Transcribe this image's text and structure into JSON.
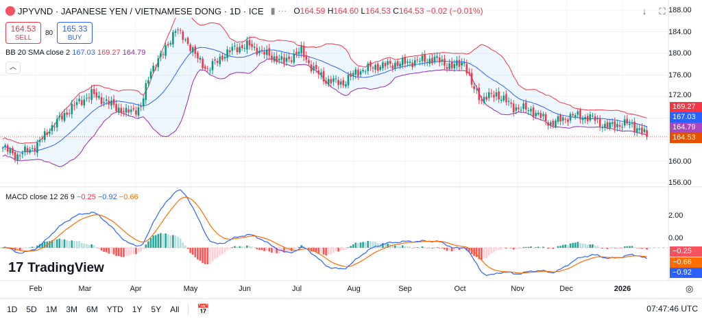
{
  "header": {
    "symbol": "JPYVND · JAPANESE YEN / VIETNAMESE DONG · 1D · ICE",
    "o_label": "O",
    "o": "164.59",
    "h_label": "H",
    "h": "164.60",
    "l_label": "L",
    "l": "164.53",
    "c_label": "C",
    "c": "164.53",
    "change": "−0.02 (−0.01%)"
  },
  "trade": {
    "sell_price": "164.53",
    "sell_label": "SELL",
    "spread": "80",
    "buy_price": "165.33",
    "buy_label": "BUY"
  },
  "bb": {
    "label": "BB 20 SMA close 2",
    "basis": "167.03",
    "upper": "169.27",
    "lower": "164.79"
  },
  "macd": {
    "label": "MACD close 12 26 9",
    "hist": "−0.25",
    "macd": "−0.92",
    "signal": "−0.66"
  },
  "brand": "TradingView",
  "price_axis": [
    "188.00",
    "184.00",
    "180.00",
    "176.00",
    "172.00",
    "160.00",
    "156.00"
  ],
  "macd_axis": [
    "2.00",
    "0.00"
  ],
  "tags": {
    "upper": "169.27",
    "basis": "167.03",
    "lower": "164.79",
    "last": "164.53",
    "hist": "−0.25",
    "signal": "−0.66",
    "macd": "−0.92"
  },
  "time_axis": [
    "Feb",
    "Mar",
    "Apr",
    "May",
    "Jun",
    "Jul",
    "Aug",
    "Sep",
    "Oct",
    "Nov",
    "Dec",
    "2026"
  ],
  "ranges": [
    "1D",
    "5D",
    "1M",
    "3M",
    "6M",
    "YTD",
    "1Y",
    "5Y",
    "All"
  ],
  "clock": "07:47:46 UTC",
  "colors": {
    "up": "#089981",
    "down": "#f23645",
    "basis": "#2962ff",
    "upper": "#f23645",
    "lower": "#9c27b0",
    "signal": "#ff6d00"
  },
  "chart_data": {
    "type": "candlestick",
    "ylim": [
      156,
      188
    ],
    "close_keypoints": [
      [
        0,
        162.5
      ],
      [
        6,
        161
      ],
      [
        14,
        163
      ],
      [
        19,
        166
      ],
      [
        28,
        170
      ],
      [
        36,
        172.5
      ],
      [
        42,
        171
      ],
      [
        50,
        169
      ],
      [
        56,
        170
      ],
      [
        60,
        177
      ],
      [
        65,
        180
      ],
      [
        70,
        184.5
      ],
      [
        75,
        182
      ],
      [
        79,
        179
      ],
      [
        83,
        177
      ],
      [
        89,
        179.5
      ],
      [
        94,
        181
      ],
      [
        100,
        181.5
      ],
      [
        106,
        180
      ],
      [
        114,
        178.5
      ],
      [
        121,
        180.5
      ],
      [
        125,
        177.5
      ],
      [
        131,
        175
      ],
      [
        138,
        174.5
      ],
      [
        143,
        176.5
      ],
      [
        150,
        177.5
      ],
      [
        158,
        178
      ],
      [
        167,
        178.5
      ],
      [
        175,
        179
      ],
      [
        182,
        177.5
      ],
      [
        187,
        178.5
      ],
      [
        190,
        174
      ],
      [
        194,
        171.5
      ],
      [
        200,
        172.5
      ],
      [
        207,
        170
      ],
      [
        214,
        169.5
      ],
      [
        222,
        167
      ],
      [
        231,
        168.5
      ],
      [
        239,
        168
      ],
      [
        244,
        166.5
      ],
      [
        253,
        167
      ],
      [
        258,
        166
      ],
      [
        261,
        164.53
      ]
    ]
  }
}
